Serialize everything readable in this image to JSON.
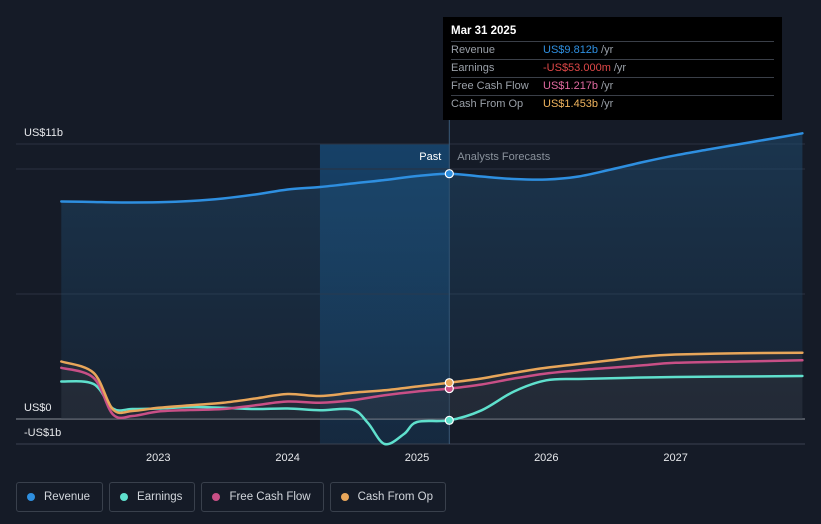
{
  "chart_data": {
    "type": "line",
    "y_axis": {
      "top_label": "US$11b",
      "zero_label": "US$0",
      "bottom_label": "-US$1b",
      "ylim": [
        -1,
        11
      ]
    },
    "x_axis": {
      "ticks": [
        "2023",
        "2024",
        "2025",
        "2026",
        "2027"
      ],
      "tick_values": [
        2023,
        2024,
        2025,
        2026,
        2027
      ],
      "xlim": [
        2021.9,
        2028.0
      ]
    },
    "past_label": "Past",
    "forecast_label": "Analysts Forecasts",
    "divider_x": 2025.25,
    "series": [
      {
        "name": "Revenue",
        "color": "#2e8fe0",
        "points": [
          [
            2022.25,
            8.7
          ],
          [
            2022.5,
            8.68
          ],
          [
            2022.75,
            8.66
          ],
          [
            2023.0,
            8.67
          ],
          [
            2023.25,
            8.72
          ],
          [
            2023.5,
            8.82
          ],
          [
            2023.75,
            8.98
          ],
          [
            2024.0,
            9.18
          ],
          [
            2024.25,
            9.28
          ],
          [
            2024.5,
            9.42
          ],
          [
            2024.75,
            9.56
          ],
          [
            2025.0,
            9.72
          ],
          [
            2025.25,
            9.812
          ],
          [
            2025.5,
            9.7
          ],
          [
            2025.75,
            9.6
          ],
          [
            2026.0,
            9.58
          ],
          [
            2026.25,
            9.7
          ],
          [
            2026.5,
            9.98
          ],
          [
            2026.75,
            10.28
          ],
          [
            2027.0,
            10.55
          ],
          [
            2027.25,
            10.78
          ],
          [
            2027.5,
            11.0
          ],
          [
            2027.75,
            11.22
          ],
          [
            2027.98,
            11.43
          ]
        ]
      },
      {
        "name": "Earnings",
        "color": "#5fe0cd",
        "points": [
          [
            2022.25,
            1.5
          ],
          [
            2022.5,
            1.4
          ],
          [
            2022.65,
            0.42
          ],
          [
            2022.8,
            0.4
          ],
          [
            2023.0,
            0.42
          ],
          [
            2023.25,
            0.48
          ],
          [
            2023.5,
            0.45
          ],
          [
            2023.75,
            0.4
          ],
          [
            2024.0,
            0.42
          ],
          [
            2024.25,
            0.35
          ],
          [
            2024.5,
            0.38
          ],
          [
            2024.62,
            -0.15
          ],
          [
            2024.75,
            -1.0
          ],
          [
            2024.9,
            -0.6
          ],
          [
            2025.0,
            -0.12
          ],
          [
            2025.25,
            -0.053
          ],
          [
            2025.5,
            0.35
          ],
          [
            2025.75,
            1.1
          ],
          [
            2026.0,
            1.55
          ],
          [
            2026.25,
            1.6
          ],
          [
            2026.5,
            1.63
          ],
          [
            2026.75,
            1.66
          ],
          [
            2027.0,
            1.68
          ],
          [
            2027.5,
            1.7
          ],
          [
            2027.98,
            1.72
          ]
        ]
      },
      {
        "name": "Free Cash Flow",
        "color": "#c84f86",
        "points": [
          [
            2022.25,
            2.05
          ],
          [
            2022.5,
            1.65
          ],
          [
            2022.65,
            0.18
          ],
          [
            2022.8,
            0.12
          ],
          [
            2023.0,
            0.3
          ],
          [
            2023.25,
            0.36
          ],
          [
            2023.5,
            0.4
          ],
          [
            2023.75,
            0.55
          ],
          [
            2024.0,
            0.7
          ],
          [
            2024.25,
            0.65
          ],
          [
            2024.5,
            0.75
          ],
          [
            2024.75,
            0.95
          ],
          [
            2025.0,
            1.1
          ],
          [
            2025.25,
            1.217
          ],
          [
            2025.5,
            1.38
          ],
          [
            2025.75,
            1.62
          ],
          [
            2026.0,
            1.82
          ],
          [
            2026.25,
            1.95
          ],
          [
            2026.5,
            2.05
          ],
          [
            2026.75,
            2.15
          ],
          [
            2027.0,
            2.25
          ],
          [
            2027.5,
            2.3
          ],
          [
            2027.98,
            2.35
          ]
        ]
      },
      {
        "name": "Cash From Op",
        "color": "#e8a65a",
        "points": [
          [
            2022.25,
            2.3
          ],
          [
            2022.5,
            1.85
          ],
          [
            2022.65,
            0.38
          ],
          [
            2022.8,
            0.32
          ],
          [
            2023.0,
            0.45
          ],
          [
            2023.25,
            0.55
          ],
          [
            2023.5,
            0.65
          ],
          [
            2023.75,
            0.82
          ],
          [
            2024.0,
            1.0
          ],
          [
            2024.25,
            0.92
          ],
          [
            2024.5,
            1.05
          ],
          [
            2024.75,
            1.15
          ],
          [
            2025.0,
            1.3
          ],
          [
            2025.25,
            1.453
          ],
          [
            2025.5,
            1.62
          ],
          [
            2025.75,
            1.85
          ],
          [
            2026.0,
            2.05
          ],
          [
            2026.25,
            2.2
          ],
          [
            2026.5,
            2.35
          ],
          [
            2026.75,
            2.5
          ],
          [
            2027.0,
            2.58
          ],
          [
            2027.5,
            2.63
          ],
          [
            2027.98,
            2.65
          ]
        ]
      }
    ]
  },
  "tooltip": {
    "date": "Mar 31 2025",
    "rows": [
      {
        "label": "Revenue",
        "value": "US$9.812b",
        "unit": "/yr",
        "color": "#2e8fe0"
      },
      {
        "label": "Earnings",
        "value": "-US$53.000m",
        "unit": "/yr",
        "color": "#e04848"
      },
      {
        "label": "Free Cash Flow",
        "value": "US$1.217b",
        "unit": "/yr",
        "color": "#e06aa0"
      },
      {
        "label": "Cash From Op",
        "value": "US$1.453b",
        "unit": "/yr",
        "color": "#f0b45e"
      }
    ]
  },
  "legend": [
    {
      "label": "Revenue",
      "color": "#2e8fe0"
    },
    {
      "label": "Earnings",
      "color": "#5fe0cd"
    },
    {
      "label": "Free Cash Flow",
      "color": "#c84f86"
    },
    {
      "label": "Cash From Op",
      "color": "#e8a65a"
    }
  ]
}
